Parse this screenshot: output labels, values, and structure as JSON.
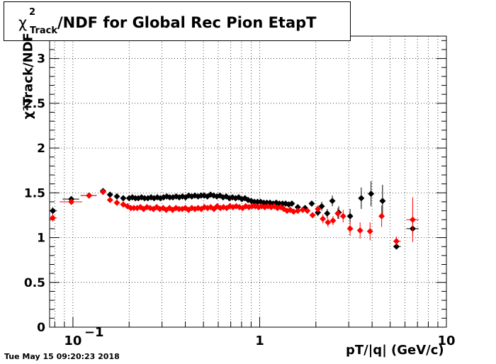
{
  "title": {
    "symbol": "χ",
    "sup": "2",
    "sub": "Track",
    "text": "/NDF for Global Rec Pion EtapT"
  },
  "timestamp": "Tue May 15 09:20:23 2018",
  "chart_data": {
    "type": "scatter",
    "title": "χ²Track/NDF for Global Rec Pion EtapT",
    "xlabel": "pT/|q| (GeV/c)",
    "ylabel": "χ²Track/NDF",
    "xscale": "log",
    "xlim": [
      0.075,
      10
    ],
    "ylim": [
      0,
      3.25
    ],
    "grid": true,
    "yticks": [
      "0",
      "0.5",
      "1",
      "1.5",
      "2",
      "2.5",
      "3"
    ],
    "xtick_labels": [
      {
        "x": 0.1,
        "label": "10",
        "exp": "−1"
      },
      {
        "x": 1,
        "label": "1",
        "exp": ""
      },
      {
        "x": 10,
        "label": "10",
        "exp": ""
      }
    ],
    "series": [
      {
        "color": "#000000",
        "points": [
          {
            "x": 0.078,
            "y": 1.3,
            "xerr": [
              0.075,
              0.082
            ],
            "yerr": 0.04
          },
          {
            "x": 0.098,
            "y": 1.43,
            "xerr": [
              0.088,
              0.108
            ],
            "yerr": 0.02
          },
          {
            "x": 0.122,
            "y": 1.47,
            "xerr": [
              0.11,
              0.134
            ],
            "yerr": 0.02
          },
          {
            "x": 0.145,
            "y": 1.52,
            "yerr": 0.02
          },
          {
            "x": 0.158,
            "y": 1.48,
            "yerr": 0.01
          },
          {
            "x": 0.172,
            "y": 1.46
          },
          {
            "x": 0.186,
            "y": 1.44
          },
          {
            "x": 0.2,
            "y": 1.44
          },
          {
            "x": 0.208,
            "y": 1.45
          },
          {
            "x": 0.216,
            "y": 1.44
          },
          {
            "x": 0.224,
            "y": 1.44
          },
          {
            "x": 0.233,
            "y": 1.45
          },
          {
            "x": 0.242,
            "y": 1.44
          },
          {
            "x": 0.252,
            "y": 1.44
          },
          {
            "x": 0.262,
            "y": 1.45
          },
          {
            "x": 0.272,
            "y": 1.44
          },
          {
            "x": 0.283,
            "y": 1.45
          },
          {
            "x": 0.294,
            "y": 1.44
          },
          {
            "x": 0.306,
            "y": 1.45
          },
          {
            "x": 0.318,
            "y": 1.46
          },
          {
            "x": 0.33,
            "y": 1.45
          },
          {
            "x": 0.343,
            "y": 1.45
          },
          {
            "x": 0.357,
            "y": 1.46
          },
          {
            "x": 0.371,
            "y": 1.45
          },
          {
            "x": 0.386,
            "y": 1.46
          },
          {
            "x": 0.401,
            "y": 1.45
          },
          {
            "x": 0.417,
            "y": 1.47
          },
          {
            "x": 0.433,
            "y": 1.46
          },
          {
            "x": 0.45,
            "y": 1.47
          },
          {
            "x": 0.468,
            "y": 1.46
          },
          {
            "x": 0.486,
            "y": 1.47
          },
          {
            "x": 0.505,
            "y": 1.47
          },
          {
            "x": 0.525,
            "y": 1.46
          },
          {
            "x": 0.546,
            "y": 1.48
          },
          {
            "x": 0.567,
            "y": 1.47
          },
          {
            "x": 0.59,
            "y": 1.46
          },
          {
            "x": 0.613,
            "y": 1.47
          },
          {
            "x": 0.637,
            "y": 1.45
          },
          {
            "x": 0.662,
            "y": 1.46
          },
          {
            "x": 0.688,
            "y": 1.44
          },
          {
            "x": 0.715,
            "y": 1.45
          },
          {
            "x": 0.743,
            "y": 1.44
          },
          {
            "x": 0.772,
            "y": 1.45
          },
          {
            "x": 0.803,
            "y": 1.43
          },
          {
            "x": 0.834,
            "y": 1.44
          },
          {
            "x": 0.867,
            "y": 1.42
          },
          {
            "x": 0.901,
            "y": 1.41
          },
          {
            "x": 0.937,
            "y": 1.4
          },
          {
            "x": 0.974,
            "y": 1.4
          },
          {
            "x": 1.012,
            "y": 1.4
          },
          {
            "x": 1.052,
            "y": 1.39
          },
          {
            "x": 1.093,
            "y": 1.39
          },
          {
            "x": 1.136,
            "y": 1.39
          },
          {
            "x": 1.181,
            "y": 1.38
          },
          {
            "x": 1.227,
            "y": 1.39
          },
          {
            "x": 1.276,
            "y": 1.38
          },
          {
            "x": 1.326,
            "y": 1.38
          },
          {
            "x": 1.378,
            "y": 1.38
          },
          {
            "x": 1.432,
            "y": 1.37
          },
          {
            "x": 1.488,
            "y": 1.38
          },
          {
            "x": 1.6,
            "y": 1.34,
            "yerr": 0.02
          },
          {
            "x": 1.75,
            "y": 1.33,
            "yerr": 0.02
          },
          {
            "x": 1.9,
            "y": 1.38,
            "yerr": 0.03
          },
          {
            "x": 2.05,
            "y": 1.28,
            "yerr": 0.04
          },
          {
            "x": 2.15,
            "y": 1.35,
            "yerr": 0.05
          },
          {
            "x": 2.3,
            "y": 1.27,
            "yerr": 0.05
          },
          {
            "x": 2.45,
            "y": 1.41,
            "yerr": 0.06
          },
          {
            "x": 2.65,
            "y": 1.28,
            "yerr": 0.07
          },
          {
            "x": 3.05,
            "y": 1.24,
            "yerr": 0.08
          },
          {
            "x": 3.5,
            "y": 1.44,
            "yerr": 0.12
          },
          {
            "x": 3.95,
            "y": 1.49,
            "yerr": 0.14
          },
          {
            "x": 4.55,
            "y": 1.41,
            "yerr": 0.18
          },
          {
            "x": 5.4,
            "y": 0.9,
            "yerr": 0.03,
            "xerr": [
              5.2,
              5.7
            ]
          },
          {
            "x": 6.6,
            "y": 1.1,
            "yerr": 0.08,
            "xerr": [
              6.1,
              7.1
            ]
          }
        ]
      },
      {
        "color": "#ff0000",
        "points": [
          {
            "x": 0.078,
            "y": 1.22,
            "xerr": [
              0.075,
              0.082
            ],
            "yerr": 0.04
          },
          {
            "x": 0.098,
            "y": 1.4,
            "xerr": [
              0.085,
              0.112
            ],
            "yerr": 0.02
          },
          {
            "x": 0.122,
            "y": 1.47,
            "xerr": [
              0.11,
              0.134
            ],
            "yerr": 0.02
          },
          {
            "x": 0.145,
            "y": 1.51,
            "yerr": 0.02
          },
          {
            "x": 0.158,
            "y": 1.42,
            "yerr": 0.01
          },
          {
            "x": 0.172,
            "y": 1.39
          },
          {
            "x": 0.186,
            "y": 1.37
          },
          {
            "x": 0.196,
            "y": 1.35
          },
          {
            "x": 0.204,
            "y": 1.33
          },
          {
            "x": 0.212,
            "y": 1.33
          },
          {
            "x": 0.221,
            "y": 1.33
          },
          {
            "x": 0.23,
            "y": 1.34
          },
          {
            "x": 0.239,
            "y": 1.32
          },
          {
            "x": 0.249,
            "y": 1.34
          },
          {
            "x": 0.259,
            "y": 1.33
          },
          {
            "x": 0.27,
            "y": 1.32
          },
          {
            "x": 0.281,
            "y": 1.34
          },
          {
            "x": 0.292,
            "y": 1.32
          },
          {
            "x": 0.304,
            "y": 1.33
          },
          {
            "x": 0.316,
            "y": 1.31
          },
          {
            "x": 0.329,
            "y": 1.33
          },
          {
            "x": 0.342,
            "y": 1.31
          },
          {
            "x": 0.356,
            "y": 1.33
          },
          {
            "x": 0.37,
            "y": 1.32
          },
          {
            "x": 0.385,
            "y": 1.32
          },
          {
            "x": 0.4,
            "y": 1.33
          },
          {
            "x": 0.416,
            "y": 1.31
          },
          {
            "x": 0.433,
            "y": 1.33
          },
          {
            "x": 0.45,
            "y": 1.32
          },
          {
            "x": 0.468,
            "y": 1.33
          },
          {
            "x": 0.487,
            "y": 1.32
          },
          {
            "x": 0.506,
            "y": 1.34
          },
          {
            "x": 0.526,
            "y": 1.33
          },
          {
            "x": 0.547,
            "y": 1.34
          },
          {
            "x": 0.569,
            "y": 1.32
          },
          {
            "x": 0.592,
            "y": 1.35
          },
          {
            "x": 0.616,
            "y": 1.33
          },
          {
            "x": 0.64,
            "y": 1.34
          },
          {
            "x": 0.666,
            "y": 1.33
          },
          {
            "x": 0.692,
            "y": 1.35
          },
          {
            "x": 0.72,
            "y": 1.34
          },
          {
            "x": 0.749,
            "y": 1.35
          },
          {
            "x": 0.779,
            "y": 1.34
          },
          {
            "x": 0.81,
            "y": 1.33
          },
          {
            "x": 0.842,
            "y": 1.35
          },
          {
            "x": 0.876,
            "y": 1.34
          },
          {
            "x": 0.911,
            "y": 1.35
          },
          {
            "x": 0.947,
            "y": 1.35
          },
          {
            "x": 0.985,
            "y": 1.34
          },
          {
            "x": 1.024,
            "y": 1.35
          },
          {
            "x": 1.065,
            "y": 1.34
          },
          {
            "x": 1.108,
            "y": 1.35
          },
          {
            "x": 1.152,
            "y": 1.34
          },
          {
            "x": 1.198,
            "y": 1.35
          },
          {
            "x": 1.246,
            "y": 1.33
          },
          {
            "x": 1.296,
            "y": 1.34
          },
          {
            "x": 1.348,
            "y": 1.32
          },
          {
            "x": 1.402,
            "y": 1.3
          },
          {
            "x": 1.458,
            "y": 1.31
          },
          {
            "x": 1.52,
            "y": 1.29
          },
          {
            "x": 1.6,
            "y": 1.3,
            "yerr": 0.02
          },
          {
            "x": 1.7,
            "y": 1.31,
            "yerr": 0.02
          },
          {
            "x": 1.8,
            "y": 1.3,
            "yerr": 0.02
          },
          {
            "x": 1.92,
            "y": 1.25,
            "yerr": 0.03
          },
          {
            "x": 2.05,
            "y": 1.32,
            "yerr": 0.04
          },
          {
            "x": 2.18,
            "y": 1.21,
            "yerr": 0.05
          },
          {
            "x": 2.32,
            "y": 1.17,
            "yerr": 0.05
          },
          {
            "x": 2.47,
            "y": 1.19,
            "yerr": 0.05
          },
          {
            "x": 2.62,
            "y": 1.27,
            "yerr": 0.06
          },
          {
            "x": 2.8,
            "y": 1.24,
            "yerr": 0.07
          },
          {
            "x": 3.05,
            "y": 1.1,
            "yerr": 0.08
          },
          {
            "x": 3.45,
            "y": 1.08,
            "yerr": 0.09
          },
          {
            "x": 3.9,
            "y": 1.07,
            "yerr": 0.1
          },
          {
            "x": 4.5,
            "y": 1.24,
            "yerr": 0.12
          },
          {
            "x": 5.4,
            "y": 0.96,
            "yerr": 0.05,
            "xerr": [
              5.2,
              5.7
            ]
          },
          {
            "x": 6.6,
            "y": 1.2,
            "yerr": 0.25,
            "xerr": [
              6.1,
              7.1
            ]
          }
        ]
      }
    ]
  }
}
